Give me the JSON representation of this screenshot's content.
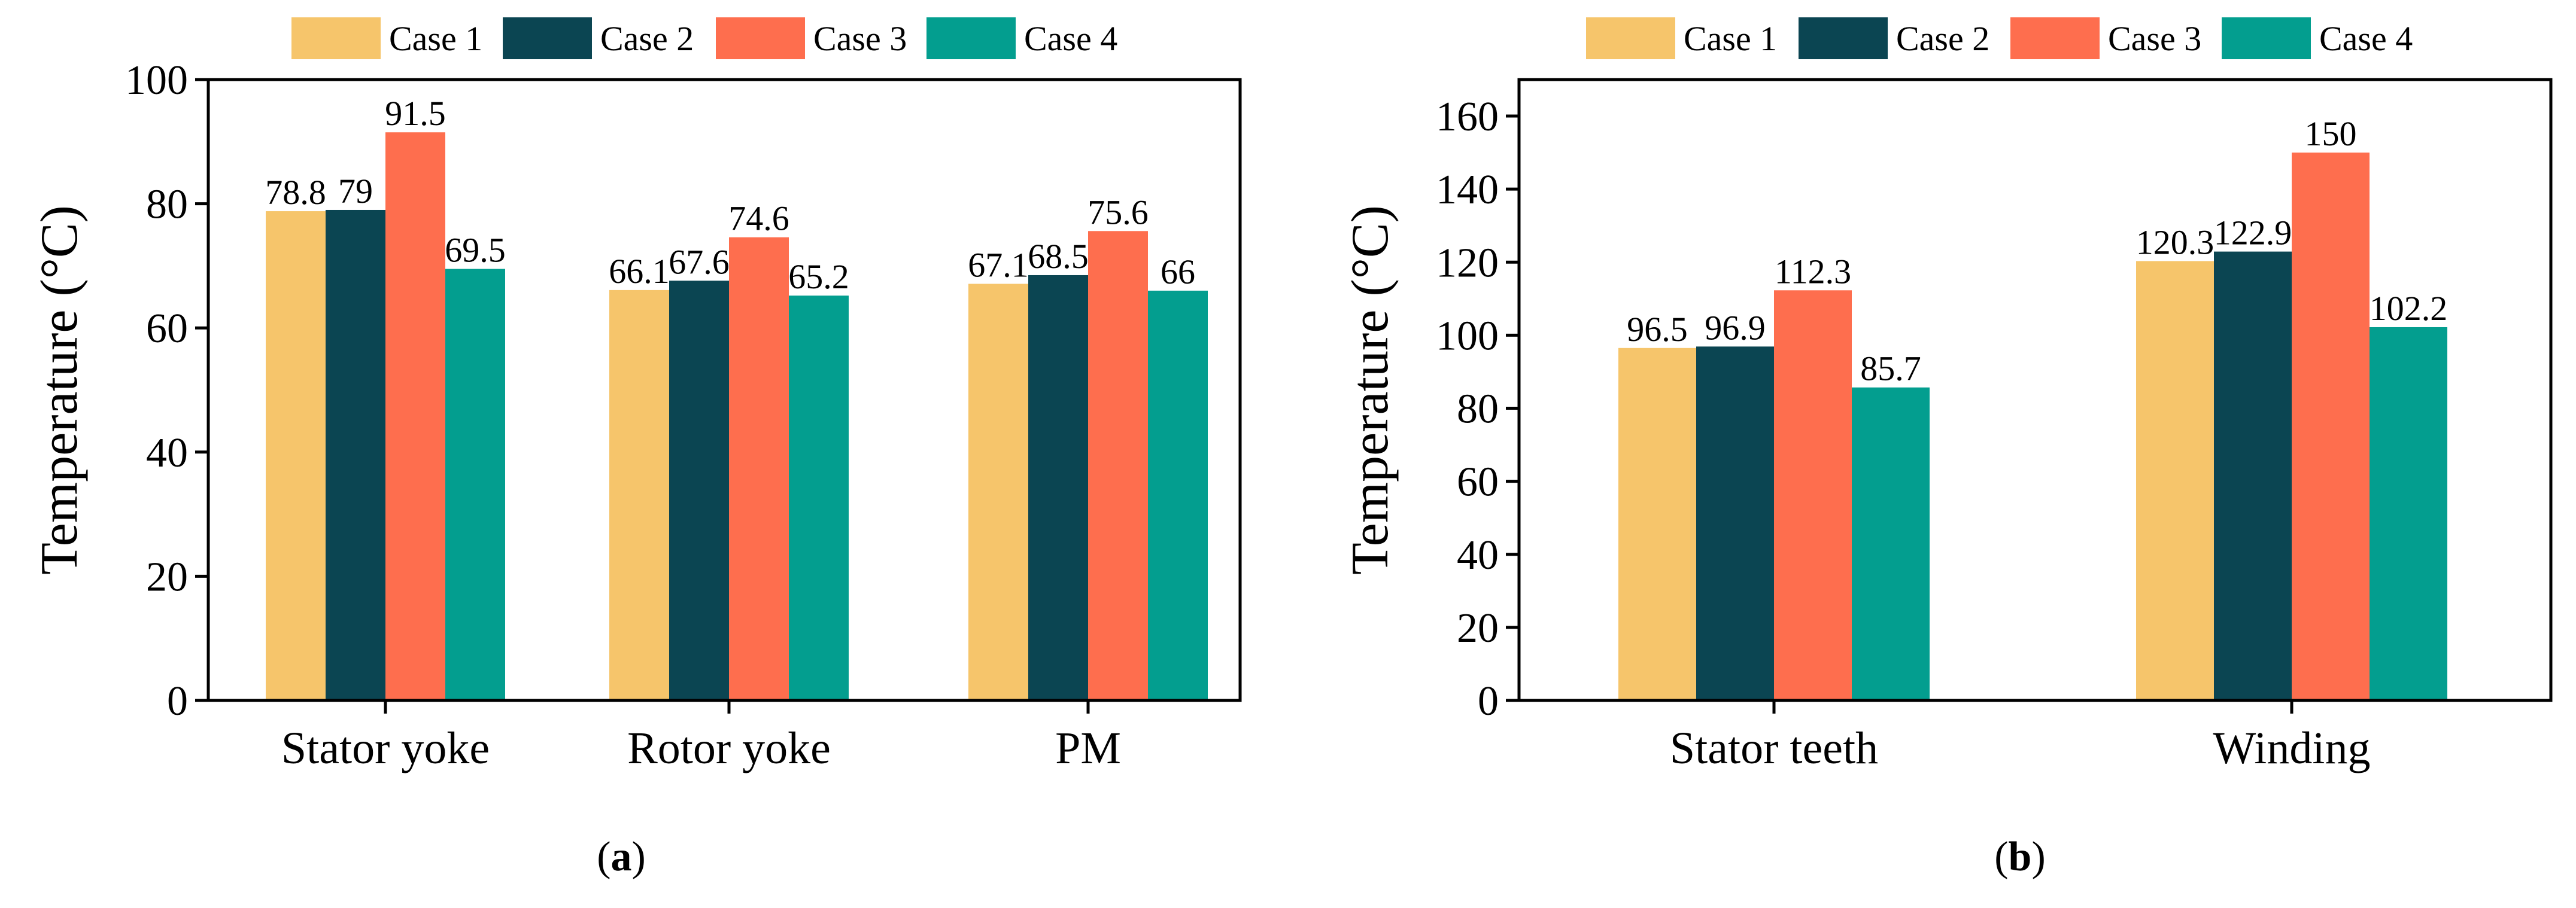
{
  "colors": {
    "Case 1": "#F6C56B",
    "Case 2": "#0B4552",
    "Case 3": "#FE6E4E",
    "Case 4": "#039E8F",
    "axis": "#000000",
    "background": "#FFFFFF"
  },
  "chart_data": [
    {
      "type": "bar",
      "panel_label": "(a)",
      "panel_letter": "a",
      "categories": [
        "Stator yoke",
        "Rotor yoke",
        "PM"
      ],
      "series": [
        {
          "name": "Case 1",
          "values": [
            78.8,
            66.1,
            67.1
          ],
          "labels": [
            "78.8",
            "66.1",
            "67.1"
          ]
        },
        {
          "name": "Case 2",
          "values": [
            79,
            67.6,
            68.5
          ],
          "labels": [
            "79",
            "67.6",
            "68.5"
          ]
        },
        {
          "name": "Case 3",
          "values": [
            91.5,
            74.6,
            75.6
          ],
          "labels": [
            "91.5",
            "74.6",
            "75.6"
          ]
        },
        {
          "name": "Case 4",
          "values": [
            69.5,
            65.2,
            66
          ],
          "labels": [
            "69.5",
            "65.2",
            "66"
          ]
        }
      ],
      "title": "",
      "xlabel": "",
      "ylabel": "Temperature (°C)",
      "ylim": [
        0,
        100
      ],
      "yticks": [
        0,
        20,
        40,
        60,
        80,
        100
      ],
      "legend": "top",
      "grid": false
    },
    {
      "type": "bar",
      "panel_label": "(b)",
      "panel_letter": "b",
      "categories": [
        "Stator teeth",
        "Winding"
      ],
      "series": [
        {
          "name": "Case 1",
          "values": [
            96.5,
            120.3
          ],
          "labels": [
            "96.5",
            "120.3"
          ]
        },
        {
          "name": "Case 2",
          "values": [
            96.9,
            122.9
          ],
          "labels": [
            "96.9",
            "122.9"
          ]
        },
        {
          "name": "Case 3",
          "values": [
            112.3,
            150
          ],
          "labels": [
            "112.3",
            "150"
          ]
        },
        {
          "name": "Case 4",
          "values": [
            85.7,
            102.2
          ],
          "labels": [
            "85.7",
            "102.2"
          ]
        }
      ],
      "title": "",
      "xlabel": "",
      "ylabel": "Temperature (°C)",
      "ylim": [
        0,
        170
      ],
      "yticks": [
        0,
        20,
        40,
        60,
        80,
        100,
        120,
        140,
        160
      ],
      "legend": "top",
      "grid": false
    }
  ]
}
